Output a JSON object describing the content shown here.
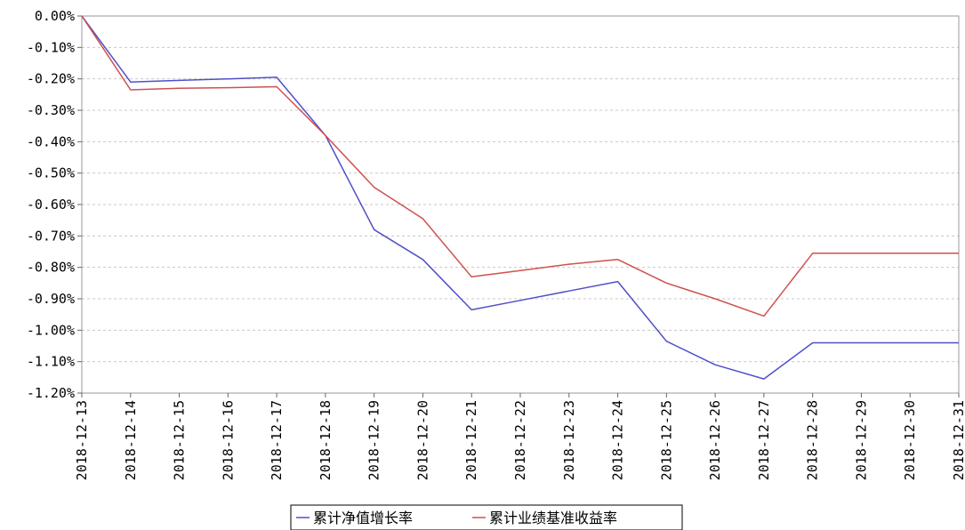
{
  "chart_data": {
    "type": "line",
    "title": "",
    "xlabel": "",
    "ylabel": "",
    "x": [
      "2018-12-13",
      "2018-12-14",
      "2018-12-15",
      "2018-12-16",
      "2018-12-17",
      "2018-12-18",
      "2018-12-19",
      "2018-12-20",
      "2018-12-21",
      "2018-12-22",
      "2018-12-23",
      "2018-12-24",
      "2018-12-25",
      "2018-12-26",
      "2018-12-27",
      "2018-12-28",
      "2018-12-29",
      "2018-12-30",
      "2018-12-31"
    ],
    "y_ticks": [
      "0.00%",
      "-0.10%",
      "-0.20%",
      "-0.30%",
      "-0.40%",
      "-0.50%",
      "-0.60%",
      "-0.70%",
      "-0.80%",
      "-0.90%",
      "-1.00%",
      "-1.10%",
      "-1.20%"
    ],
    "ylim": [
      -1.2,
      0.0
    ],
    "y_unit": "%",
    "grid": true,
    "legend_position": "bottom-center",
    "series": [
      {
        "name": "累计净值增长率",
        "color": "#5050c8",
        "values": [
          0.0,
          -0.21,
          -0.205,
          -0.2,
          -0.195,
          -0.38,
          -0.68,
          -0.775,
          -0.935,
          -0.905,
          -0.875,
          -0.845,
          -1.035,
          -1.11,
          -1.155,
          -1.04,
          -1.04,
          -1.04,
          -1.04
        ]
      },
      {
        "name": "累计业绩基准收益率",
        "color": "#d05050",
        "values": [
          0.0,
          -0.235,
          -0.23,
          -0.228,
          -0.225,
          -0.38,
          -0.545,
          -0.645,
          -0.83,
          -0.81,
          -0.79,
          -0.775,
          -0.85,
          -0.9,
          -0.955,
          -0.755,
          -0.755,
          -0.755,
          -0.755
        ]
      }
    ]
  }
}
